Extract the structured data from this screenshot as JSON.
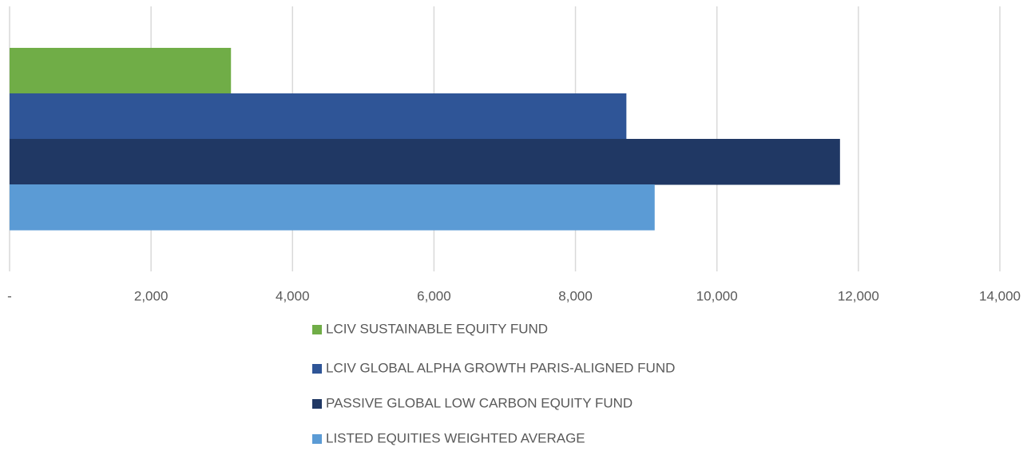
{
  "chart_data": {
    "type": "hbar",
    "categories": [
      null
    ],
    "series": [
      {
        "name": "LCIV SUSTAINABLE EQUITY FUND",
        "color": "#70ad47",
        "values": [
          3130
        ]
      },
      {
        "name": "LCIV GLOBAL ALPHA GROWTH PARIS-ALIGNED FUND",
        "color": "#2f5597",
        "values": [
          8720
        ]
      },
      {
        "name": "PASSIVE GLOBAL LOW CARBON EQUITY FUND",
        "color": "#203864",
        "values": [
          11740
        ]
      },
      {
        "name": "LISTED EQUITIES WEIGHTED AVERAGE",
        "color": "#5b9bd5",
        "values": [
          9120
        ]
      }
    ],
    "xlim": [
      0,
      14000
    ],
    "xticks": [
      {
        "value": 0,
        "label": "-"
      },
      {
        "value": 2000,
        "label": "2,000"
      },
      {
        "value": 4000,
        "label": "4,000"
      },
      {
        "value": 6000,
        "label": "6,000"
      },
      {
        "value": 8000,
        "label": "8,000"
      },
      {
        "value": 10000,
        "label": "10,000"
      },
      {
        "value": 12000,
        "label": "12,000"
      },
      {
        "value": 14000,
        "label": "14,000"
      }
    ],
    "grid": true,
    "legend": "bottom"
  }
}
